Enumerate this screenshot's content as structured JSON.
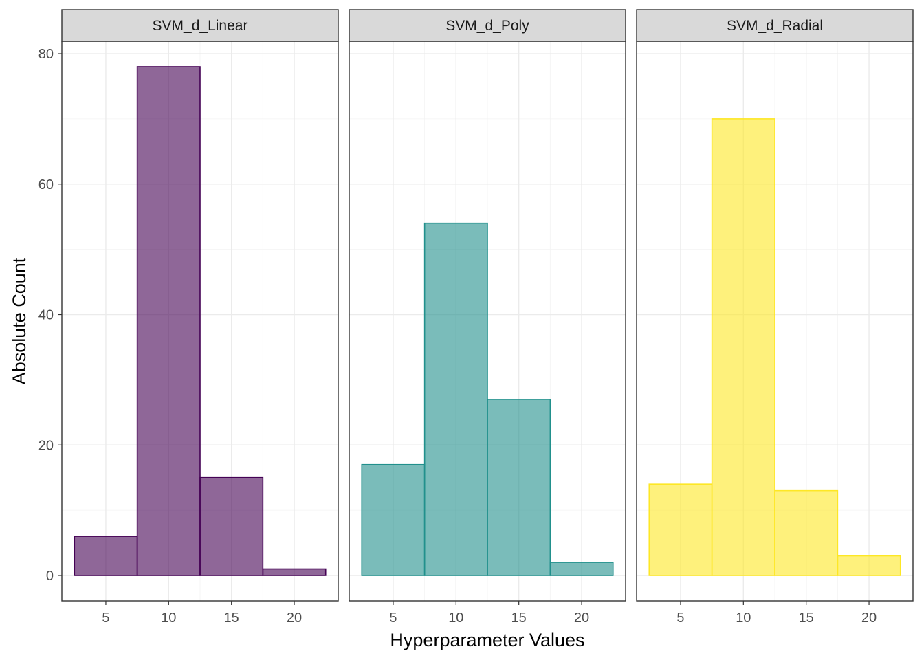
{
  "chart_data": {
    "type": "bar",
    "xlabel": "Hyperparameter Values",
    "ylabel": "Absolute Count",
    "xlim": [
      1.5,
      23.5
    ],
    "ylim": [
      -3.9,
      81.9
    ],
    "x_ticks": [
      5,
      10,
      15,
      20
    ],
    "y_ticks": [
      0,
      20,
      40,
      60,
      80
    ],
    "bin_width": 5,
    "bin_centers": [
      5,
      10,
      15,
      20
    ],
    "grid": true,
    "legend": "none",
    "panels": [
      {
        "name": "SVM_d_Linear",
        "fill": "#440154",
        "stroke": "#440154",
        "fill_opacity": 0.6,
        "values": [
          6,
          78,
          15,
          1
        ]
      },
      {
        "name": "SVM_d_Poly",
        "fill": "#21908C",
        "stroke": "#21908C",
        "fill_opacity": 0.6,
        "values": [
          17,
          54,
          27,
          2
        ]
      },
      {
        "name": "SVM_d_Radial",
        "fill": "#FDE725",
        "stroke": "#FDE725",
        "fill_opacity": 0.6,
        "values": [
          14,
          70,
          13,
          3
        ]
      }
    ]
  }
}
